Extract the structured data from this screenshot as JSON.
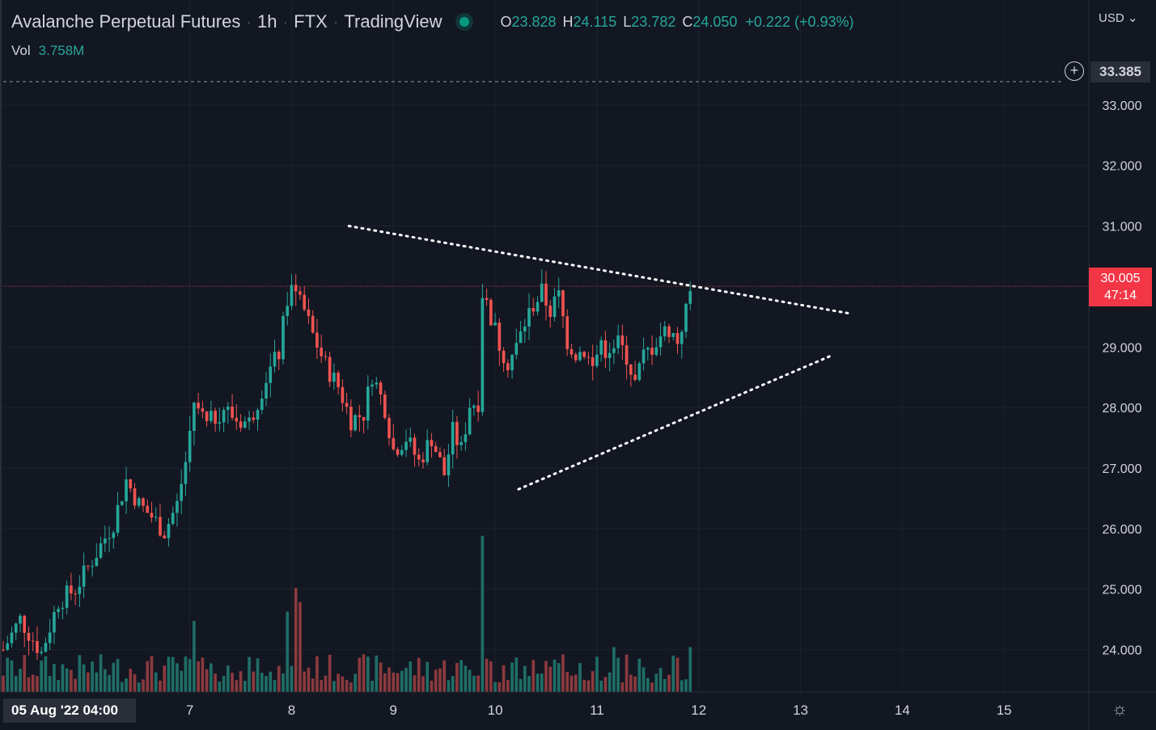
{
  "header": {
    "title": "Avalanche Perpetual Futures",
    "interval": "1h",
    "exchange": "FTX",
    "source": "TradingView",
    "ohlc": {
      "o_label": "O",
      "o": "23.828",
      "h_label": "H",
      "h": "24.115",
      "l_label": "L",
      "l": "23.782",
      "c_label": "C",
      "c": "24.050",
      "change": "+0.222 (+0.93%)"
    },
    "vol_label": "Vol",
    "vol_value": "3.758M"
  },
  "price_axis": {
    "currency": "USD",
    "marker_price": "33.385",
    "last_price": "30.005",
    "countdown": "47:14"
  },
  "time_axis": {
    "first_label": "05 Aug '22  04:00",
    "labels": [
      {
        "day": 7,
        "text": "7"
      },
      {
        "day": 8,
        "text": "8"
      },
      {
        "day": 9,
        "text": "9"
      },
      {
        "day": 10,
        "text": "10"
      },
      {
        "day": 11,
        "text": "11"
      },
      {
        "day": 12,
        "text": "12"
      },
      {
        "day": 13,
        "text": "13"
      },
      {
        "day": 14,
        "text": "14"
      },
      {
        "day": 15,
        "text": "15"
      }
    ]
  },
  "colors": {
    "up": "#26a69a",
    "down": "#ef5350",
    "up_vol": "#1f6e66",
    "down_vol": "#8b3a3e",
    "background": "#131722",
    "grid": "#1e222d",
    "trendline": "#ffffff"
  },
  "chart_data": {
    "type": "candlestick",
    "title": "Avalanche Perpetual Futures · 1h · FTX",
    "ylim": [
      23.3,
      34.2
    ],
    "y_ticks": [
      24,
      25,
      26,
      27,
      28,
      29,
      30,
      31,
      32,
      33
    ],
    "y_tick_labels": [
      "24.000",
      "25.000",
      "26.000",
      "27.000",
      "28.000",
      "29.000",
      "30.000",
      "31.000",
      "32.000",
      "33.000"
    ],
    "x_unit": "hours since 2022-08-06 00:00",
    "x_range": [
      -20,
      236
    ],
    "current_price": 30.005,
    "dashed_price_line": 33.385,
    "triangle": {
      "upper": [
        {
          "x": 61.5,
          "y": 31.0
        },
        {
          "x": 180,
          "y": 29.55
        }
      ],
      "lower": [
        {
          "x": 101.5,
          "y": 26.65
        },
        {
          "x": 175,
          "y": 28.85
        }
      ]
    },
    "price_path": [
      [
        -20,
        24.0
      ],
      [
        -16,
        24.5
      ],
      [
        -11,
        23.95
      ],
      [
        -7,
        24.8
      ],
      [
        -3,
        25.0
      ],
      [
        2,
        25.6
      ],
      [
        6,
        26.1
      ],
      [
        9,
        26.8
      ],
      [
        12,
        26.4
      ],
      [
        15,
        26.2
      ],
      [
        18,
        25.95
      ],
      [
        21,
        26.4
      ],
      [
        23,
        27.1
      ],
      [
        25,
        28.1
      ],
      [
        28,
        27.7
      ],
      [
        32,
        28.0
      ],
      [
        35,
        27.8
      ],
      [
        38,
        27.75
      ],
      [
        42,
        28.5
      ],
      [
        45,
        28.9
      ],
      [
        47,
        29.8
      ],
      [
        49,
        30.05
      ],
      [
        51,
        29.6
      ],
      [
        53,
        29.2
      ],
      [
        56,
        28.7
      ],
      [
        59,
        28.35
      ],
      [
        62,
        27.8
      ],
      [
        65,
        27.9
      ],
      [
        67,
        28.55
      ],
      [
        70,
        28.0
      ],
      [
        72,
        27.3
      ],
      [
        75,
        27.5
      ],
      [
        78,
        27.1
      ],
      [
        81,
        27.5
      ],
      [
        84,
        26.9
      ],
      [
        86,
        27.6
      ],
      [
        88,
        27.3
      ],
      [
        90,
        28.05
      ],
      [
        92,
        28.1
      ],
      [
        93,
        29.9
      ],
      [
        95,
        29.5
      ],
      [
        97,
        29.05
      ],
      [
        99,
        28.75
      ],
      [
        101,
        29.0
      ],
      [
        103,
        29.4
      ],
      [
        105,
        29.7
      ],
      [
        107,
        29.9
      ],
      [
        109,
        29.6
      ],
      [
        111,
        29.85
      ],
      [
        113,
        29.1
      ],
      [
        115,
        28.9
      ],
      [
        117,
        28.95
      ],
      [
        119,
        28.65
      ],
      [
        121,
        29.1
      ],
      [
        123,
        28.8
      ],
      [
        125,
        29.05
      ],
      [
        127,
        28.85
      ],
      [
        129,
        28.4
      ],
      [
        131,
        28.85
      ],
      [
        133,
        29.0
      ],
      [
        135,
        29.2
      ],
      [
        137,
        29.3
      ],
      [
        139,
        29.1
      ],
      [
        141,
        29.6
      ],
      [
        142.5,
        30.05
      ]
    ],
    "volume_max": 3.758,
    "volume_spikes": [
      [
        49,
        2.2
      ],
      [
        93,
        3.3
      ],
      [
        50,
        1.9
      ],
      [
        47,
        1.7
      ],
      [
        25,
        1.5
      ],
      [
        142,
        0.95
      ],
      [
        124,
        0.95
      ]
    ]
  }
}
